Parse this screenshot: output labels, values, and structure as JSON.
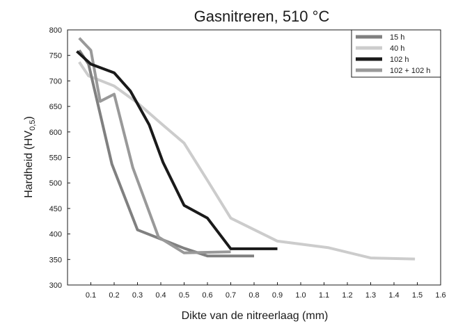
{
  "chart_data": {
    "type": "line",
    "title": "Gasnitreren, 510 °C",
    "xlabel": "Dikte van de nitreerlaag (mm)",
    "ylabel": "Hardheid (HV",
    "ylabel_sub": "0,5",
    "ylabel_close": ")",
    "xlim": [
      0.0,
      1.6
    ],
    "ylim": [
      300,
      800
    ],
    "xticks": [
      0.1,
      0.2,
      0.3,
      0.4,
      0.5,
      0.6,
      0.7,
      0.8,
      0.9,
      1.0,
      1.1,
      1.2,
      1.3,
      1.4,
      1.5,
      1.6
    ],
    "xtick_labels": [
      "0.1",
      "0.2",
      "0.3",
      "0.4",
      "0.5",
      "0.6",
      "0.7",
      "0.8",
      "0.9",
      "1.0",
      "1.1",
      "1.2",
      "1.3",
      "1.4",
      "1.5",
      "1.6"
    ],
    "yticks": [
      300,
      350,
      400,
      450,
      500,
      550,
      600,
      650,
      700,
      750,
      800
    ],
    "ytick_labels": [
      "300",
      "350",
      "400",
      "450",
      "500",
      "550",
      "600",
      "650",
      "700",
      "750",
      "800"
    ],
    "grid": false,
    "legend_position": "top-right",
    "series": [
      {
        "name": "15 h",
        "color": "#808080",
        "x": [
          0.05,
          0.09,
          0.19,
          0.3,
          0.4,
          0.5,
          0.6,
          0.7,
          0.8
        ],
        "y": [
          760,
          733,
          537,
          408,
          390,
          372,
          357,
          357,
          357
        ]
      },
      {
        "name": "40 h",
        "color": "#cccccc",
        "x": [
          0.05,
          0.09,
          0.2,
          0.3,
          0.4,
          0.5,
          0.6,
          0.7,
          0.9,
          1.12,
          1.3,
          1.49
        ],
        "y": [
          737,
          710,
          690,
          657,
          617,
          578,
          505,
          431,
          386,
          373,
          353,
          351
        ]
      },
      {
        "name": "102 h",
        "color": "#1a1a1a",
        "x": [
          0.04,
          0.1,
          0.2,
          0.27,
          0.35,
          0.41,
          0.5,
          0.6,
          0.7,
          0.9
        ],
        "y": [
          758,
          733,
          716,
          680,
          614,
          540,
          456,
          431,
          371,
          371
        ]
      },
      {
        "name": "102 + 102 h",
        "color": "#999999",
        "x": [
          0.05,
          0.1,
          0.14,
          0.2,
          0.28,
          0.39,
          0.5,
          0.7
        ],
        "y": [
          784,
          760,
          660,
          674,
          530,
          394,
          363,
          365
        ]
      }
    ]
  }
}
